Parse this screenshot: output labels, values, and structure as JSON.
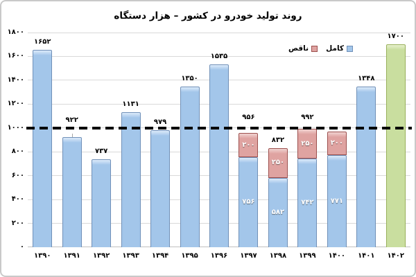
{
  "chart_data": {
    "type": "bar",
    "stacked": true,
    "title": "روند تولید خودرو در کشور – هزار دستگاه",
    "direction": "rtl",
    "ylim": [
      0,
      1800
    ],
    "gridline_step": 200,
    "y_tick_labels": [
      "۰",
      "۲۰۰",
      "۴۰۰",
      "۶۰۰",
      "۸۰۰",
      "۱۰۰۰",
      "۱۲۰۰",
      "۱۴۰۰",
      "۱۶۰۰",
      "۱۸۰۰"
    ],
    "reference_line": {
      "value": 1000,
      "style": "dashed",
      "color": "#000000"
    },
    "legend": {
      "position": "top-right",
      "items": [
        {
          "name": "کامل",
          "style": "blue"
        },
        {
          "name": "ناقص",
          "style": "pink"
        }
      ]
    },
    "categories": [
      "۱۳۹۰",
      "۱۳۹۱",
      "۱۳۹۲",
      "۱۳۹۳",
      "۱۳۹۴",
      "۱۳۹۵",
      "۱۳۹۶",
      "۱۳۹۷",
      "۱۳۹۸",
      "۱۳۹۹",
      "۱۴۰۰",
      "۱۴۰۱",
      "۱۴۰۲"
    ],
    "series": [
      {
        "name": "کامل",
        "values": [
          1652,
          922,
          737,
          1131,
          979,
          1350,
          1535,
          756,
          582,
          742,
          771,
          1348,
          1700
        ]
      },
      {
        "name": "ناقص",
        "values": [
          0,
          0,
          0,
          0,
          0,
          0,
          0,
          200,
          250,
          250,
          200,
          0,
          0
        ]
      }
    ],
    "bars": [
      {
        "year": "۱۳۹۰",
        "complete": 1652,
        "incomplete": 0,
        "total_label": "۱۶۵۲",
        "style": "blue"
      },
      {
        "year": "۱۳۹۱",
        "complete": 922,
        "incomplete": 0,
        "total_label": "۹۲۲",
        "style": "blue",
        "label_lift": 13,
        "leader": true
      },
      {
        "year": "۱۳۹۲",
        "complete": 737,
        "incomplete": 0,
        "total_label": "۷۳۷",
        "style": "blue"
      },
      {
        "year": "۱۳۹۳",
        "complete": 1131,
        "incomplete": 0,
        "total_label": "۱۱۳۱",
        "style": "blue"
      },
      {
        "year": "۱۳۹۴",
        "complete": 979,
        "incomplete": 0,
        "total_label": "۹۷۹",
        "style": "blue"
      },
      {
        "year": "۱۳۹۵",
        "complete": 1350,
        "incomplete": 0,
        "total_label": "۱۳۵۰",
        "style": "blue"
      },
      {
        "year": "۱۳۹۶",
        "complete": 1535,
        "incomplete": 0,
        "total_label": "۱۵۳۵",
        "style": "blue"
      },
      {
        "year": "۱۳۹۷",
        "complete": 756,
        "incomplete": 200,
        "total_label": "۹۵۶",
        "complete_label": "۷۵۶",
        "incomplete_label": "۲۰۰",
        "style": "blue",
        "label_lift": 11
      },
      {
        "year": "۱۳۹۸",
        "complete": 582,
        "incomplete": 250,
        "total_label": "۸۳۲",
        "complete_label": "۵۸۲",
        "incomplete_label": "۲۵۰",
        "style": "blue"
      },
      {
        "year": "۱۳۹۹",
        "complete": 742,
        "incomplete": 250,
        "total_label": "۹۹۲",
        "complete_label": "۷۴۲",
        "incomplete_label": "۲۵۰",
        "style": "blue",
        "label_lift": 5
      },
      {
        "year": "۱۴۰۰",
        "complete": 771,
        "incomplete": 200,
        "total_label": "",
        "complete_label": "۷۷۱",
        "incomplete_label": "۲۰۰",
        "style": "blue"
      },
      {
        "year": "۱۴۰۱",
        "complete": 1348,
        "incomplete": 0,
        "total_label": "۱۳۴۸",
        "style": "blue"
      },
      {
        "year": "۱۴۰۲",
        "complete": 1700,
        "incomplete": 0,
        "total_label": "۱۷۰۰",
        "style": "green"
      }
    ],
    "styles": {
      "blue": {
        "fill": "#a3c6ea",
        "highlight": "#ddebfa",
        "border": "#7090b8"
      },
      "pink": {
        "fill": "#dfa3a1",
        "highlight": "#f0d3d1",
        "border": "#9c4f4d"
      },
      "green": {
        "fill": "#c9de9f",
        "highlight": "#e7f0cd",
        "border": "#98b05a"
      }
    },
    "colors": {
      "gridline": "#d9d9d9",
      "baseline": "#bfbfbf",
      "leader_line": "#a6a6a6",
      "title_text": "#000000",
      "label_text_inside": "#ffffff",
      "label_text_outside": "#000000"
    }
  }
}
